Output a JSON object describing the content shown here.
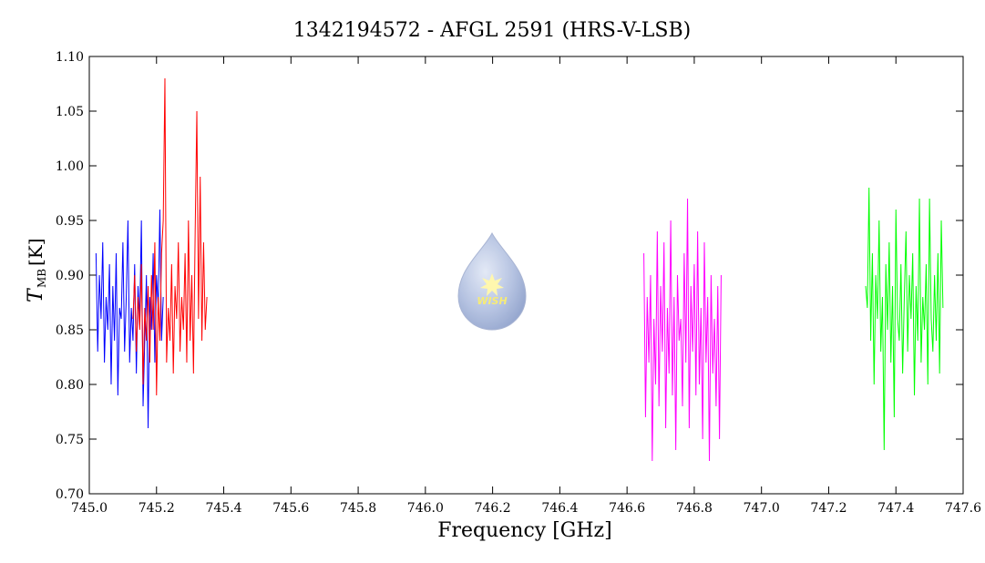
{
  "chart_data": {
    "type": "line",
    "title": "1342194572 - AFGL 2591 (HRS-V-LSB)",
    "xlabel": "Frequency [GHz]",
    "ylabel": {
      "main": "T",
      "subscript": "MB",
      "unit": "[K]"
    },
    "logo_text": "WISH",
    "xlim": [
      745.0,
      747.6
    ],
    "ylim": [
      0.7,
      1.1
    ],
    "xticks": [
      {
        "value": 745.0,
        "label": "745.0"
      },
      745.2,
      745.4,
      745.6,
      745.8,
      {
        "value": 746.0,
        "label": "746.0"
      },
      746.2,
      746.4,
      746.6,
      746.8,
      {
        "value": 747.0,
        "label": "747.0"
      },
      747.2,
      747.4,
      747.6
    ],
    "yticks": [
      {
        "value": 0.7,
        "label": "0.70"
      },
      0.75,
      {
        "value": 0.8,
        "label": "0.80"
      },
      0.85,
      {
        "value": 0.9,
        "label": "0.90"
      },
      0.95,
      {
        "value": 1.0,
        "label": "1.00"
      },
      1.05,
      {
        "value": 1.1,
        "label": "1.10"
      }
    ],
    "series": [
      {
        "color": "#0000ff",
        "x": [
          745.02,
          745.025,
          745.03,
          745.035,
          745.04,
          745.045,
          745.05,
          745.055,
          745.06,
          745.065,
          745.07,
          745.075,
          745.08,
          745.085,
          745.09,
          745.095,
          745.1,
          745.105,
          745.11,
          745.115,
          745.12,
          745.125,
          745.13,
          745.135,
          745.14,
          745.145,
          745.15,
          745.155,
          745.16,
          745.165,
          745.17,
          745.175,
          745.18,
          745.185,
          745.19,
          745.195,
          745.2,
          745.205,
          745.21,
          745.215,
          745.22
        ],
        "values": [
          0.92,
          0.83,
          0.9,
          0.86,
          0.93,
          0.82,
          0.88,
          0.85,
          0.91,
          0.8,
          0.89,
          0.84,
          0.92,
          0.79,
          0.87,
          0.86,
          0.93,
          0.83,
          0.88,
          0.95,
          0.82,
          0.87,
          0.84,
          0.91,
          0.81,
          0.89,
          0.86,
          0.95,
          0.78,
          0.84,
          0.9,
          0.76,
          0.88,
          0.85,
          0.92,
          0.82,
          0.9,
          0.87,
          0.96,
          0.84,
          0.88
        ]
      },
      {
        "color": "#ff0000",
        "x": [
          745.13,
          745.135,
          745.14,
          745.145,
          745.15,
          745.155,
          745.16,
          745.165,
          745.17,
          745.175,
          745.18,
          745.185,
          745.19,
          745.195,
          745.2,
          745.205,
          745.21,
          745.215,
          745.22,
          745.225,
          745.23,
          745.235,
          745.24,
          745.245,
          745.25,
          745.255,
          745.26,
          745.265,
          745.27,
          745.275,
          745.28,
          745.285,
          745.29,
          745.295,
          745.3,
          745.305,
          745.31,
          745.315,
          745.32,
          745.325,
          745.33,
          745.335,
          745.34,
          745.345,
          745.35
        ],
        "values": [
          0.86,
          0.9,
          0.83,
          0.88,
          0.85,
          0.91,
          0.8,
          0.87,
          0.84,
          0.89,
          0.82,
          0.9,
          0.85,
          0.93,
          0.79,
          0.88,
          0.84,
          0.92,
          0.95,
          1.08,
          0.82,
          0.87,
          0.84,
          0.91,
          0.81,
          0.89,
          0.86,
          0.93,
          0.83,
          0.88,
          0.85,
          0.92,
          0.82,
          0.95,
          0.84,
          0.9,
          0.81,
          0.94,
          1.05,
          0.86,
          0.99,
          0.84,
          0.93,
          0.85,
          0.88
        ]
      },
      {
        "color": "#ff00ff",
        "x": [
          746.65,
          746.655,
          746.66,
          746.665,
          746.67,
          746.675,
          746.68,
          746.685,
          746.69,
          746.695,
          746.7,
          746.705,
          746.71,
          746.715,
          746.72,
          746.725,
          746.73,
          746.735,
          746.74,
          746.745,
          746.75,
          746.755,
          746.76,
          746.765,
          746.77,
          746.775,
          746.78,
          746.785,
          746.79,
          746.795,
          746.8,
          746.805,
          746.81,
          746.815,
          746.82,
          746.825,
          746.83,
          746.835,
          746.84,
          746.845,
          746.85,
          746.855,
          746.86,
          746.865,
          746.87,
          746.875,
          746.88
        ],
        "values": [
          0.92,
          0.77,
          0.88,
          0.82,
          0.9,
          0.73,
          0.86,
          0.8,
          0.94,
          0.78,
          0.89,
          0.83,
          0.93,
          0.76,
          0.87,
          0.81,
          0.95,
          0.79,
          0.88,
          0.74,
          0.9,
          0.84,
          0.86,
          0.78,
          0.92,
          0.82,
          0.97,
          0.76,
          0.89,
          0.83,
          0.91,
          0.79,
          0.94,
          0.8,
          0.87,
          0.75,
          0.93,
          0.82,
          0.88,
          0.73,
          0.9,
          0.81,
          0.86,
          0.78,
          0.89,
          0.75,
          0.9
        ]
      },
      {
        "color": "#00ff00",
        "x": [
          747.31,
          747.315,
          747.32,
          747.325,
          747.33,
          747.335,
          747.34,
          747.345,
          747.35,
          747.355,
          747.36,
          747.365,
          747.37,
          747.375,
          747.38,
          747.385,
          747.39,
          747.395,
          747.4,
          747.405,
          747.41,
          747.415,
          747.42,
          747.425,
          747.43,
          747.435,
          747.44,
          747.445,
          747.45,
          747.455,
          747.46,
          747.465,
          747.47,
          747.475,
          747.48,
          747.485,
          747.49,
          747.495,
          747.5,
          747.505,
          747.51,
          747.515,
          747.52,
          747.525,
          747.53,
          747.535,
          747.54
        ],
        "values": [
          0.89,
          0.87,
          0.98,
          0.84,
          0.92,
          0.8,
          0.9,
          0.86,
          0.95,
          0.83,
          0.88,
          0.74,
          0.91,
          0.85,
          0.93,
          0.82,
          0.89,
          0.77,
          0.96,
          0.86,
          0.84,
          0.91,
          0.81,
          0.88,
          0.94,
          0.83,
          0.9,
          0.86,
          0.92,
          0.79,
          0.89,
          0.84,
          0.97,
          0.82,
          0.88,
          0.85,
          0.91,
          0.8,
          0.97,
          0.86,
          0.83,
          0.9,
          0.84,
          0.92,
          0.81,
          0.95,
          0.87
        ]
      }
    ]
  }
}
